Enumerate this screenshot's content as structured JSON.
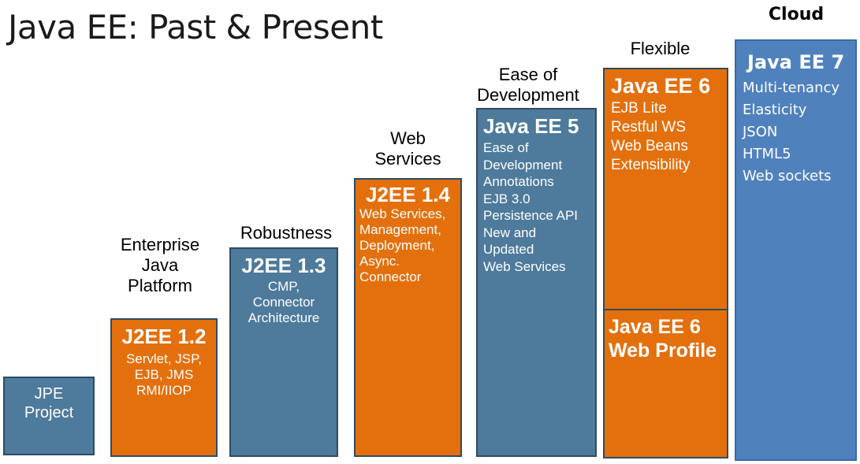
{
  "title": "Java EE: Past & Present",
  "themes": {
    "enterprise": "Enterprise\nJava\nPlatform",
    "robustness": "Robustness",
    "web_services": "Web\nServices",
    "ease": "Ease of\nDevelopment",
    "flexible": "Flexible",
    "cloud": "Cloud"
  },
  "boxes": {
    "jpe": {
      "label": "JPE\nProject"
    },
    "j2ee12": {
      "title": "J2EE 1.2",
      "lines": "Servlet, JSP,\nEJB, JMS\nRMI/IIOP"
    },
    "j2ee13": {
      "title": "J2EE 1.3",
      "lines": "CMP,\nConnector\nArchitecture"
    },
    "j2ee14": {
      "title": "J2EE 1.4",
      "lines": "Web Services,\nManagement,\nDeployment,\n Async.\nConnector"
    },
    "javaee5": {
      "title": "Java EE 5",
      "lines": "Ease of\nDevelopment\nAnnotations\nEJB 3.0\nPersistence API\nNew and\nUpdated\n Web Services"
    },
    "javaee6": {
      "title": "Java EE 6",
      "lines": "EJB Lite\nRestful WS\nWeb Beans\nExtensibility"
    },
    "javaee6_web": {
      "title": "Java EE 6\nWeb Profile"
    },
    "javaee7": {
      "title": "Java EE 7",
      "lines": "Multi-tenancy\nElasticity\nJSON\nHTML5\nWeb sockets"
    }
  },
  "colors": {
    "blue": "#4e7a9b",
    "orange": "#e3700d",
    "cloud_blue": "#4f81bd"
  }
}
